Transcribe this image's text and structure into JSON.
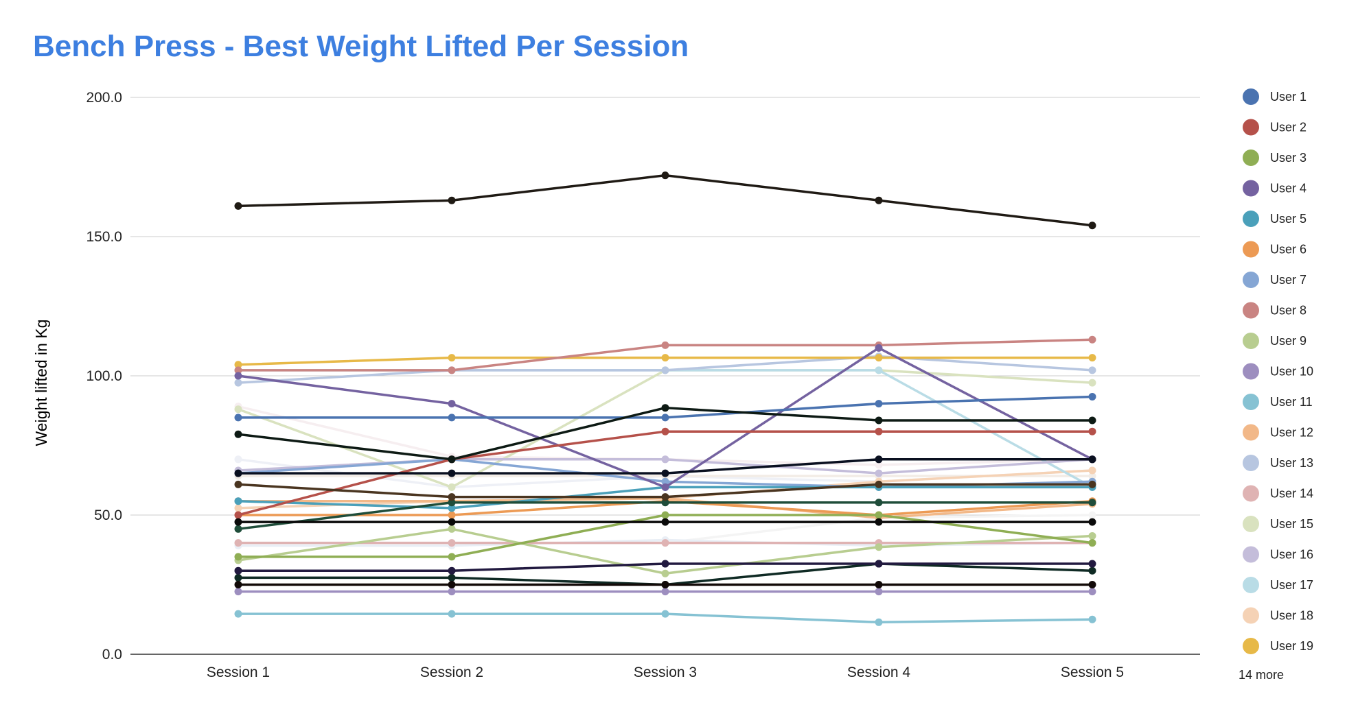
{
  "chart_data": {
    "type": "line",
    "title": "Bench Press - Best Weight Lifted Per Session",
    "title_color": "#3d7fe0",
    "xlabel": "",
    "ylabel": "Weight lifted in Kg",
    "ylim": [
      0,
      200
    ],
    "y_ticks": [
      "0.0",
      "50.0",
      "100.0",
      "150.0",
      "200.0"
    ],
    "y_tick_values": [
      0,
      50,
      100,
      150,
      200
    ],
    "categories": [
      "Session 1",
      "Session 2",
      "Session 3",
      "Session 4",
      "Session 5"
    ],
    "grid": true,
    "legend_position": "right",
    "legend_more": "14 more",
    "series": [
      {
        "name": "User 1",
        "color": "#4a73b0",
        "values": [
          85,
          85,
          85,
          90,
          92.5
        ]
      },
      {
        "name": "User 2",
        "color": "#b5514a",
        "values": [
          50,
          70,
          80,
          80,
          80
        ]
      },
      {
        "name": "User 3",
        "color": "#8fae54",
        "values": [
          35,
          35,
          50,
          50,
          40
        ]
      },
      {
        "name": "User 4",
        "color": "#7462a0",
        "values": [
          100,
          90,
          60,
          110,
          70
        ]
      },
      {
        "name": "User 5",
        "color": "#4aa0ba",
        "values": [
          55,
          52.5,
          60,
          60,
          60
        ]
      },
      {
        "name": "User 6",
        "color": "#ec9a54",
        "values": [
          50,
          50,
          55,
          50,
          55
        ]
      },
      {
        "name": "User 7",
        "color": "#85a6d4",
        "values": [
          65,
          70,
          62,
          60,
          62
        ]
      },
      {
        "name": "User 8",
        "color": "#c98482",
        "values": [
          102,
          102,
          111,
          111,
          113
        ]
      },
      {
        "name": "User 9",
        "color": "#b8cd90",
        "values": [
          33.75,
          45,
          29,
          38.5,
          42.5
        ]
      },
      {
        "name": "User 10",
        "color": "#9d8ebf",
        "values": [
          22.5,
          22.5,
          22.5,
          22.5,
          22.5
        ]
      },
      {
        "name": "User 11",
        "color": "#86c2d3",
        "values": [
          14.5,
          14.5,
          14.5,
          11.5,
          12.5
        ]
      },
      {
        "name": "User 12",
        "color": "#f2b888",
        "values": [
          55,
          55,
          56,
          49,
          54
        ]
      },
      {
        "name": "User 13",
        "color": "#b7c6e0",
        "values": [
          97.5,
          102,
          102,
          107,
          102
        ]
      },
      {
        "name": "User 14",
        "color": "#dfb3b3",
        "values": [
          40,
          40,
          40,
          40,
          40
        ]
      },
      {
        "name": "User 15",
        "color": "#d9e2bf",
        "values": [
          88,
          60,
          102,
          102,
          97.5
        ]
      },
      {
        "name": "User 16",
        "color": "#c4bdda",
        "values": [
          66,
          70,
          70,
          65,
          70
        ]
      },
      {
        "name": "User 17",
        "color": "#b9dce6",
        "values": [
          102,
          102,
          102,
          102,
          60
        ]
      },
      {
        "name": "User 18",
        "color": "#f5d2b5",
        "values": [
          52.5,
          55,
          56,
          62,
          66
        ]
      },
      {
        "name": "User 19",
        "color": "#e7b948",
        "values": [
          104,
          106.5,
          106.5,
          106.5,
          106.5
        ]
      },
      {
        "color": "#1f1a14",
        "values": [
          161,
          163,
          172,
          163,
          154
        ]
      },
      {
        "color": "#0d1a14",
        "values": [
          79,
          70,
          88.5,
          84,
          84
        ]
      },
      {
        "color": "#0a1020",
        "values": [
          65,
          65,
          65,
          70,
          70
        ]
      },
      {
        "color": "#4a3520",
        "values": [
          61,
          56.5,
          56.5,
          61,
          61
        ]
      },
      {
        "color": "#1f4d3a",
        "values": [
          45,
          54.5,
          54.5,
          54.5,
          54.5
        ]
      },
      {
        "color": "#0a0a0a",
        "values": [
          47.5,
          47.5,
          47.5,
          47.5,
          47.5
        ]
      },
      {
        "color": "#221a40",
        "values": [
          30,
          30,
          32.5,
          32.5,
          32.5
        ]
      },
      {
        "color": "#0f2a24",
        "values": [
          27.5,
          27.5,
          25,
          32.5,
          30
        ]
      },
      {
        "color": "#120a08",
        "values": [
          25,
          25,
          25,
          25,
          25
        ]
      },
      {
        "color": "#f6eef0",
        "values": [
          89,
          71,
          70,
          68,
          70
        ]
      },
      {
        "color": "#eef0f6",
        "values": [
          70,
          60,
          64,
          62,
          66
        ]
      },
      {
        "color": "#f4f4f4",
        "values": [
          40,
          40,
          40,
          49,
          50
        ]
      },
      {
        "color": "#e9eef5",
        "values": [
          39,
          39,
          41,
          39,
          40
        ]
      },
      {
        "color": "#f2ece6",
        "values": [
          64,
          64,
          64,
          64,
          64
        ]
      }
    ]
  }
}
